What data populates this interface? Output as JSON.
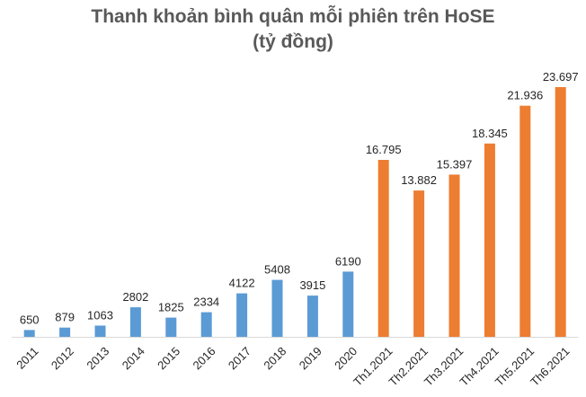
{
  "chart_data": {
    "type": "bar",
    "title": "Thanh khoản bình quân mỗi phiên trên HoSE",
    "subtitle": "(tỷ đồng)",
    "categories": [
      "2011",
      "2012",
      "2013",
      "2014",
      "2015",
      "2016",
      "2017",
      "2018",
      "2019",
      "2020",
      "Th1.2021",
      "Th2.2021",
      "Th3.2021",
      "Th4.2021",
      "Th5.2021",
      "Th6.2021"
    ],
    "values": [
      650,
      879,
      1063,
      2802,
      1825,
      2334,
      4122,
      5408,
      3915,
      6190,
      16795,
      13882,
      15397,
      18345,
      21936,
      23697
    ],
    "data_labels": [
      "650",
      "879",
      "1063",
      "2802",
      "1825",
      "2334",
      "4122",
      "5408",
      "3915",
      "6190",
      "16.795",
      "13.882",
      "15.397",
      "18.345",
      "21.936",
      "23.697"
    ],
    "bar_colors": [
      "#5b9bd5",
      "#5b9bd5",
      "#5b9bd5",
      "#5b9bd5",
      "#5b9bd5",
      "#5b9bd5",
      "#5b9bd5",
      "#5b9bd5",
      "#5b9bd5",
      "#5b9bd5",
      "#ed7d31",
      "#ed7d31",
      "#ed7d31",
      "#ed7d31",
      "#ed7d31",
      "#ed7d31"
    ],
    "xlabel": "",
    "ylabel": "",
    "ylim": [
      0,
      23697
    ],
    "grid": false,
    "legend": "none"
  }
}
